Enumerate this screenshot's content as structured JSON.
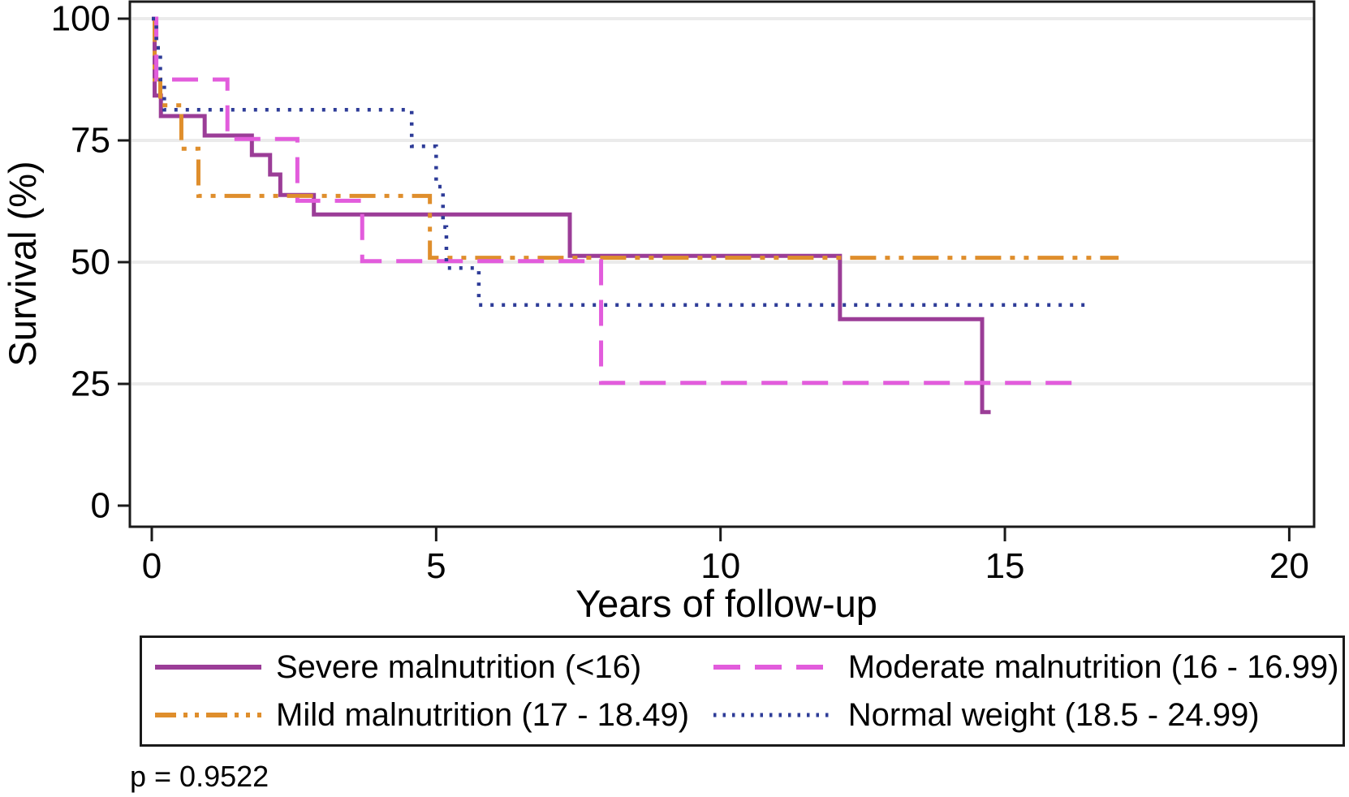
{
  "chart_data": {
    "type": "line",
    "subtype": "kaplan-meier-step",
    "title": "",
    "xlabel": "Years of follow-up",
    "ylabel": "Survival (%)",
    "xlim": [
      0,
      20.4
    ],
    "ylim": [
      0,
      100
    ],
    "grid": "horizontal light gray lines at y = 25, 50, 75, 100",
    "grid_y": [
      25,
      50,
      75,
      100
    ],
    "x_ticks": {
      "values": [
        0,
        5,
        10,
        15,
        20
      ],
      "labels": [
        "0",
        "5",
        "10",
        "15",
        "20"
      ]
    },
    "y_ticks": {
      "values": [
        100,
        75,
        50,
        25,
        0
      ],
      "labels": [
        "100",
        "75",
        "50",
        "25",
        "0"
      ]
    },
    "legend_position": "boxed legend below plot, 2 columns x 2 rows",
    "annotation": "p = 0.9522",
    "series": [
      {
        "name": "Severe malnutrition (<16)",
        "color": "#9B3D97",
        "style": "solid",
        "steps": [
          [
            0,
            100
          ],
          [
            0.05,
            84.2
          ],
          [
            0.16,
            80
          ],
          [
            0.93,
            76
          ],
          [
            1.76,
            72
          ],
          [
            2.08,
            68
          ],
          [
            2.26,
            63.8
          ],
          [
            2.85,
            59.8
          ],
          [
            7.35,
            51.3
          ],
          [
            12.1,
            38.3
          ],
          [
            14.6,
            19.2
          ]
        ],
        "end_x": 14.75
      },
      {
        "name": "Moderate malnutrition (16 - 16.99)",
        "color": "#E25CDC",
        "style": "longdash",
        "steps": [
          [
            0,
            100
          ],
          [
            0.08,
            87.5
          ],
          [
            1.33,
            75.3
          ],
          [
            2.56,
            62.6
          ],
          [
            3.7,
            50.2
          ],
          [
            7.9,
            25.2
          ]
        ],
        "end_x": 16.3
      },
      {
        "name": "Mild malnutrition (17 - 18.49)",
        "color": "#DF8E2C",
        "style": "dashdotdot",
        "steps": [
          [
            0,
            100
          ],
          [
            0.05,
            87.5
          ],
          [
            0.15,
            82.2
          ],
          [
            0.52,
            73.3
          ],
          [
            0.82,
            63.6
          ],
          [
            4.89,
            50.9
          ]
        ],
        "end_x": 17.0
      },
      {
        "name": "Normal weight (18.5 - 24.99)",
        "color": "#2E3C98",
        "style": "dotted",
        "steps": [
          [
            0,
            100
          ],
          [
            0.08,
            94
          ],
          [
            0.15,
            87.5
          ],
          [
            0.22,
            81.3
          ],
          [
            4.57,
            73.8
          ],
          [
            5.0,
            65.5
          ],
          [
            5.12,
            57.2
          ],
          [
            5.18,
            48.8
          ],
          [
            5.75,
            41.2
          ]
        ],
        "end_x": 16.4
      }
    ]
  },
  "annotation": {
    "p_value": "p = 0.9522"
  }
}
